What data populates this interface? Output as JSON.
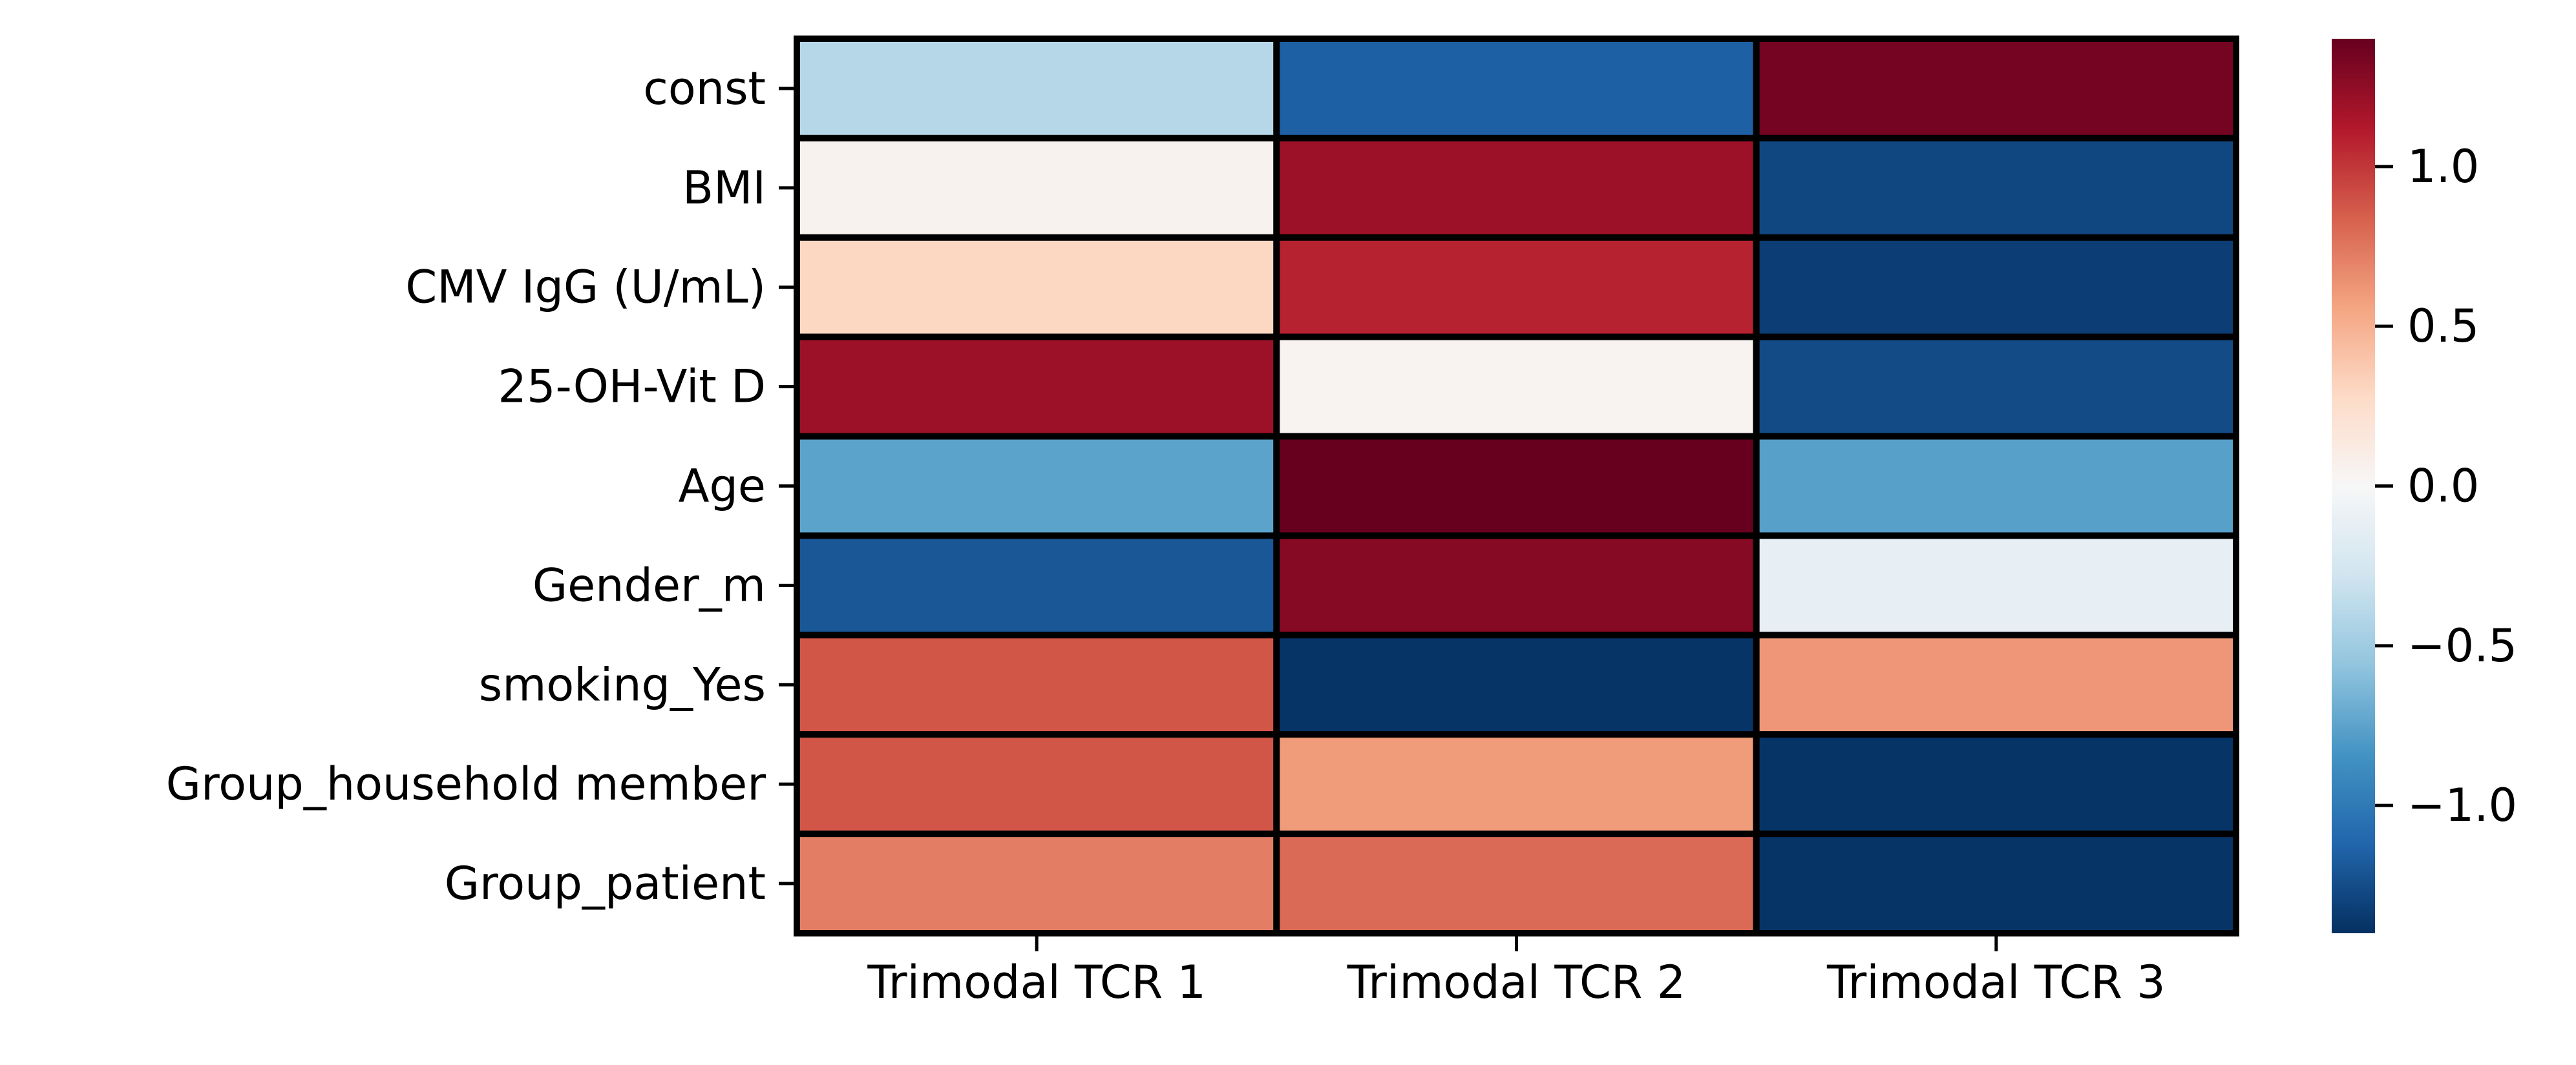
{
  "chart_data": {
    "type": "heatmap",
    "title": "",
    "xlabel": "",
    "ylabel": "",
    "x_categories": [
      "Trimodal TCR 1",
      "Trimodal TCR 2",
      "Trimodal TCR 3"
    ],
    "y_categories": [
      "const",
      "BMI",
      "CMV IgG (U/mL)",
      "25-OH-Vit D",
      "Age",
      "Gender_m",
      "smoking_Yes",
      "Group_household member",
      "Group_patient"
    ],
    "values": [
      [
        -0.4,
        -1.15,
        1.35
      ],
      [
        0.05,
        1.2,
        -1.28
      ],
      [
        0.3,
        1.08,
        -1.33
      ],
      [
        1.2,
        0.04,
        -1.26
      ],
      [
        -0.75,
        1.4,
        -0.77
      ],
      [
        -1.2,
        1.28,
        -0.12
      ],
      [
        0.88,
        -1.38,
        0.62
      ],
      [
        0.88,
        0.6,
        -1.38
      ],
      [
        0.72,
        0.8,
        -1.38
      ]
    ],
    "colormap": "RdBu_r",
    "vmin": -1.4,
    "vmax": 1.4,
    "colorbar": {
      "ticks": [
        1.0,
        0.5,
        0.0,
        -0.5,
        -1.0
      ],
      "tick_labels": [
        "1.0",
        "0.5",
        "0.0",
        "−0.5",
        "−1.0"
      ]
    },
    "cell_border_color": "#000000",
    "grid": false,
    "legend": "colorbar right"
  }
}
